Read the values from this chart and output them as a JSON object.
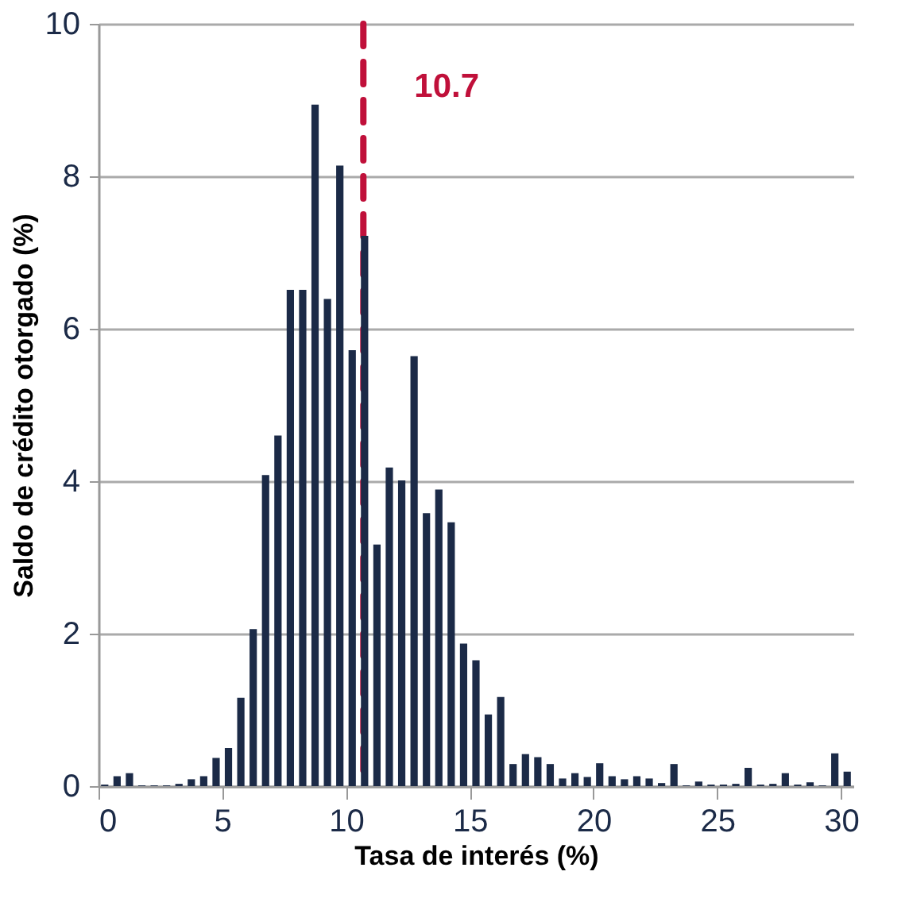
{
  "chart_data": {
    "type": "histogram",
    "xlabel": "Tasa de interés (%)",
    "ylabel": "Saldo de crédito otorgado (%)",
    "bins": [
      0,
      0.5,
      1,
      1.5,
      2,
      2.5,
      3,
      3.5,
      4,
      4.5,
      5,
      5.5,
      6,
      6.5,
      7,
      7.5,
      8,
      8.5,
      9,
      9.5,
      10,
      10.5,
      11,
      11.5,
      12,
      12.5,
      13,
      13.5,
      14,
      14.5,
      15,
      15.5,
      16,
      16.5,
      17,
      17.5,
      18,
      18.5,
      19,
      19.5,
      20,
      20.5,
      21,
      21.5,
      22,
      22.5,
      23,
      23.5,
      24,
      24.5,
      25,
      25.5,
      26,
      26.5,
      27,
      27.5,
      28,
      28.5,
      29,
      29.5,
      30,
      30.5
    ],
    "values": [
      0.02,
      0.13,
      0.17,
      0.01,
      0.01,
      0.01,
      0.03,
      0.09,
      0.13,
      0.37,
      0.5,
      1.16,
      2.06,
      4.08,
      4.6,
      6.51,
      6.51,
      8.94,
      6.39,
      8.14,
      5.72,
      7.22,
      3.17,
      4.18,
      4.01,
      5.64,
      3.58,
      3.89,
      3.46,
      1.87,
      1.65,
      0.94,
      1.17,
      0.29,
      0.42,
      0.38,
      0.29,
      0.1,
      0.17,
      0.12,
      0.3,
      0.13,
      0.09,
      0.13,
      0.1,
      0.04,
      0.29,
      0.01,
      0.06,
      0.02,
      0.02,
      0.03,
      0.24,
      0.02,
      0.03,
      0.17,
      0.02,
      0.05,
      0.01,
      0.43,
      0.19
    ],
    "color": "#1b2a47",
    "xlim": [
      0,
      30.5
    ],
    "xticks": [
      0,
      5,
      10,
      15,
      20,
      25,
      30
    ],
    "ylim": [
      0,
      10
    ],
    "yticks": [
      0,
      2,
      4,
      6,
      8,
      10
    ],
    "grid": "y",
    "ref_lines": [
      {
        "axis": "x",
        "value": 10.7,
        "label": "10.7",
        "color": "#c0103a",
        "line_style": "dashed"
      }
    ]
  }
}
